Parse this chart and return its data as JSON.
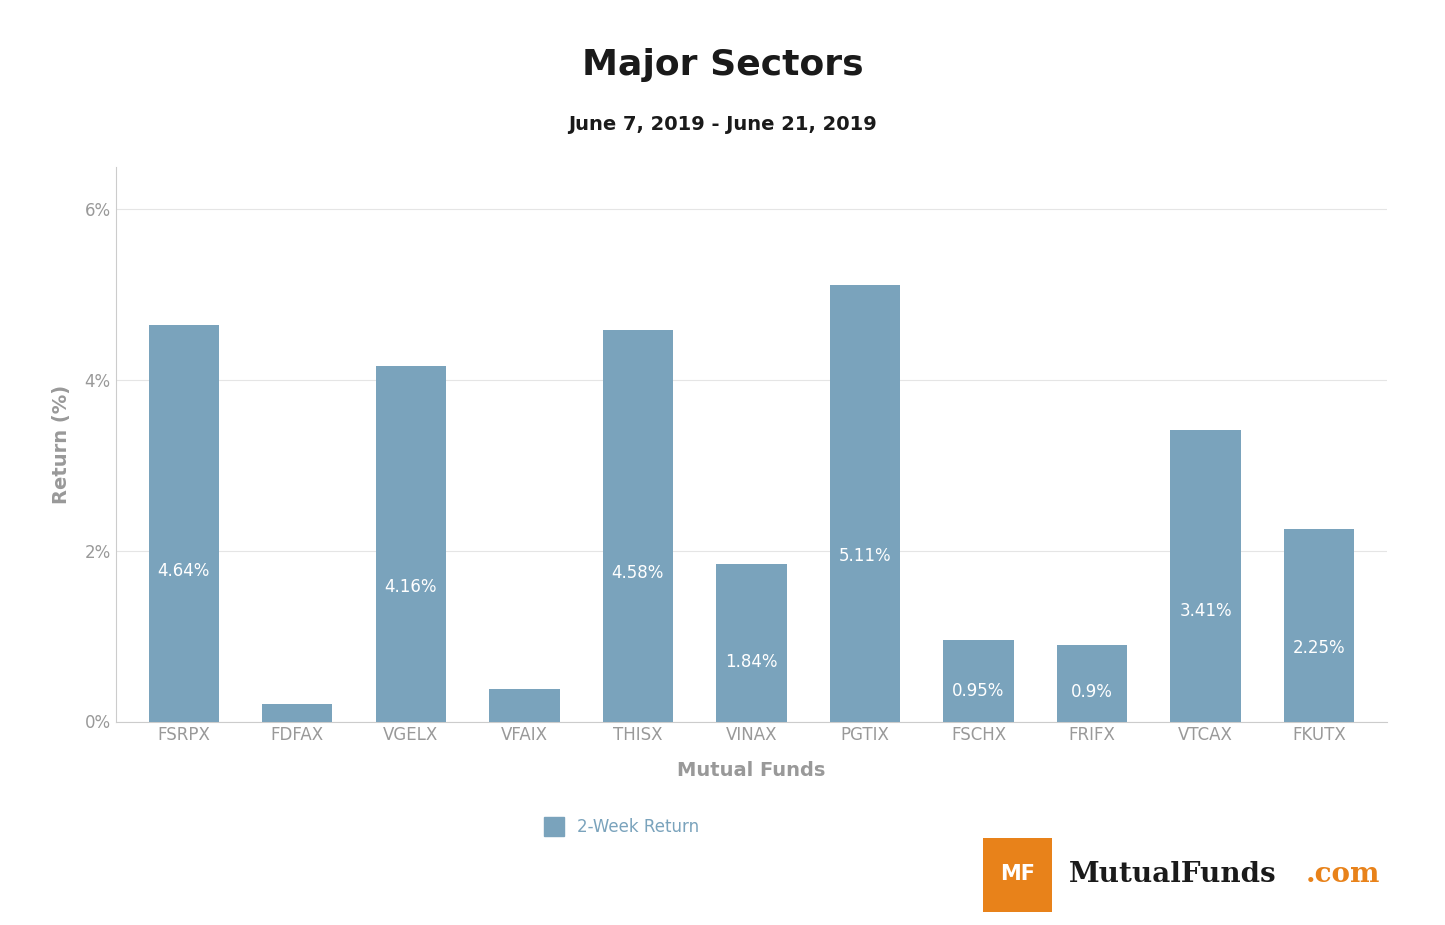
{
  "title": "Major Sectors",
  "subtitle": "June 7, 2019 - June 21, 2019",
  "categories": [
    "FSRPX",
    "FDFAX",
    "VGELX",
    "VFAIX",
    "THISX",
    "VINAX",
    "PGTIX",
    "FSCHX",
    "FRIFX",
    "VTCAX",
    "FKUTX"
  ],
  "values": [
    4.64,
    0.2,
    4.16,
    0.38,
    4.58,
    1.84,
    5.11,
    0.95,
    0.9,
    3.41,
    2.25
  ],
  "bar_color": "#7aa3bc",
  "label_color": "#ffffff",
  "legend_label_color": "#7aa3bc",
  "xlabel": "Mutual Funds",
  "ylabel": "Return (%)",
  "ylim": [
    0,
    6.5
  ],
  "yticks": [
    0,
    2,
    4,
    6
  ],
  "ytick_labels": [
    "0%",
    "2%",
    "4%",
    "6%"
  ],
  "background_color": "#ffffff",
  "legend_label": "2-Week Return",
  "title_fontsize": 26,
  "subtitle_fontsize": 14,
  "axis_label_fontsize": 13,
  "tick_fontsize": 12,
  "bar_label_fontsize": 12,
  "tick_color": "#999999",
  "axis_label_color": "#999999",
  "spine_color": "#cccccc",
  "grid_color": "#e5e5e5",
  "logo_orange": "#e8821a",
  "logo_dark": "#1a1a1a"
}
